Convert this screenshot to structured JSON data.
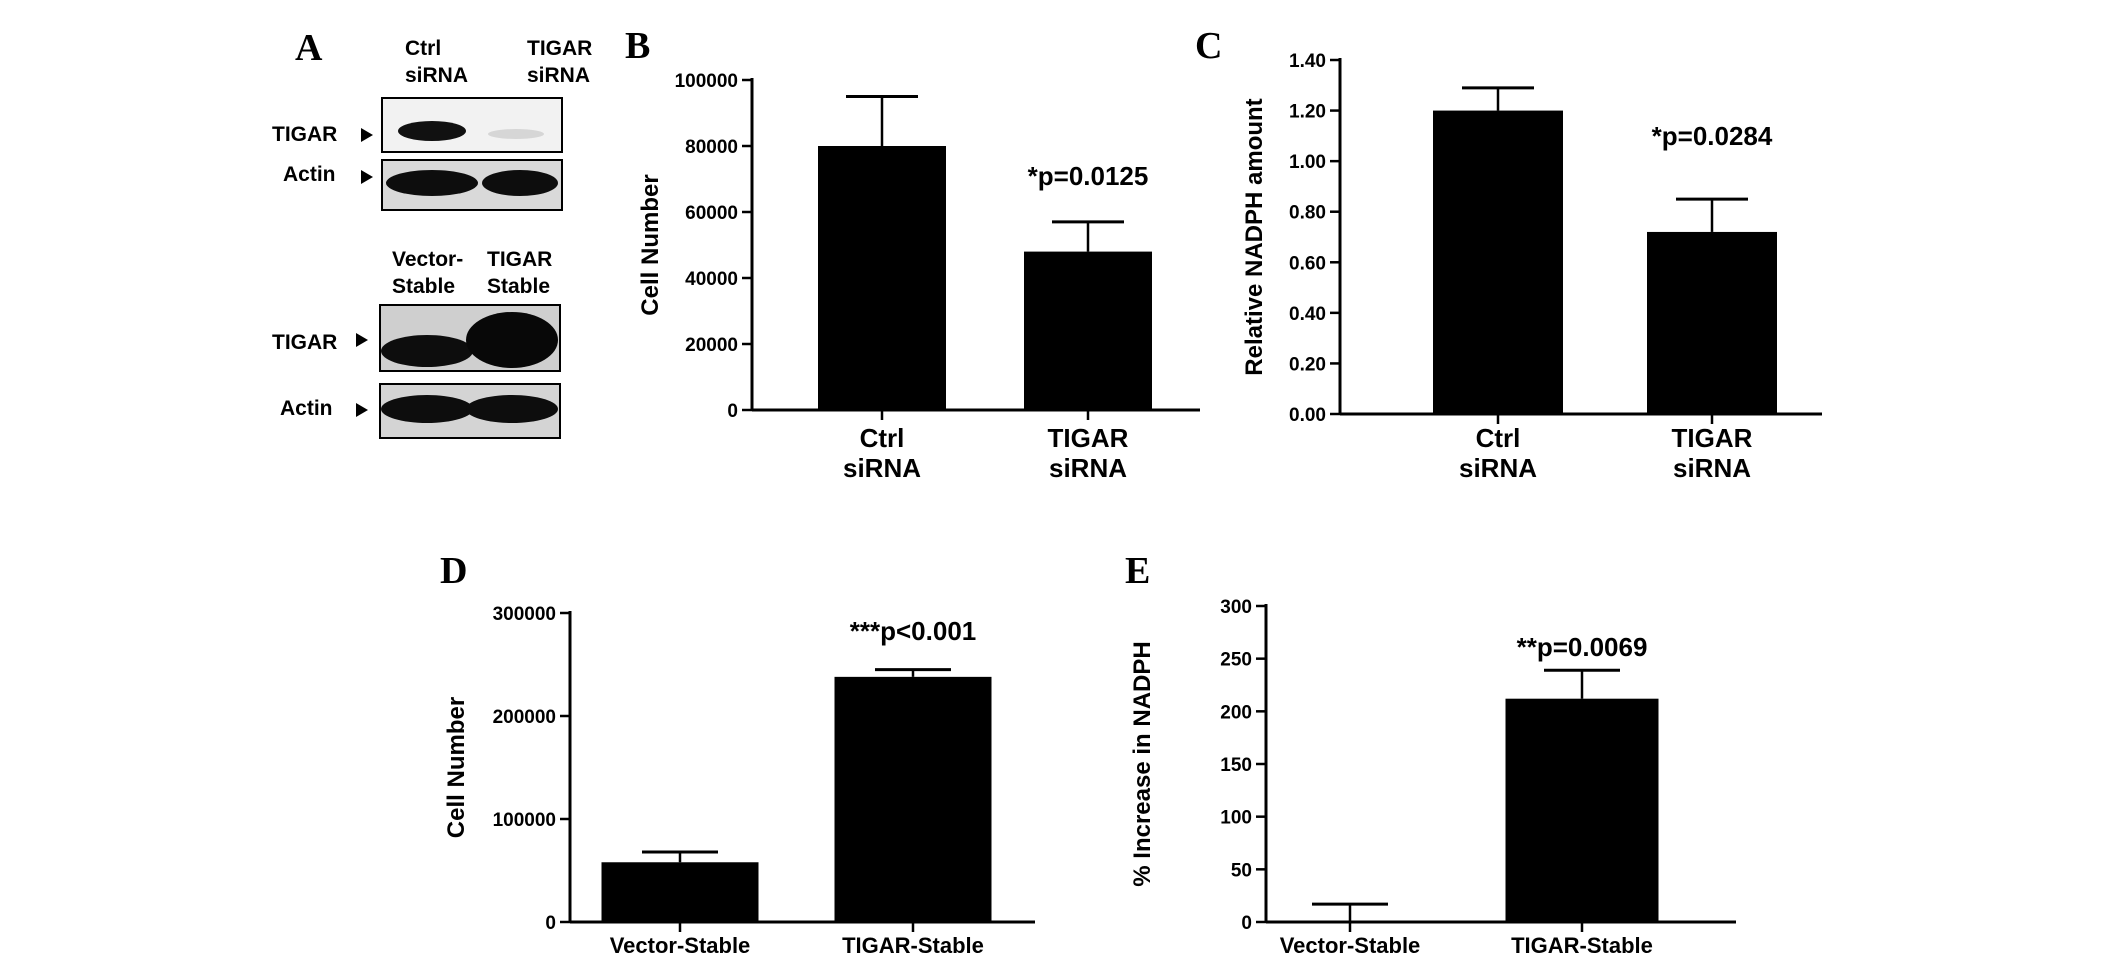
{
  "panel_a": {
    "letter": "A",
    "blot1": {
      "lanes": [
        [
          "Ctrl",
          "siRNA"
        ],
        [
          "TIGAR",
          "siRNA"
        ]
      ],
      "rows": [
        "TIGAR",
        "Actin"
      ]
    },
    "blot2": {
      "lanes": [
        [
          "Vector-",
          "Stable"
        ],
        [
          "TIGAR",
          "Stable"
        ]
      ],
      "rows": [
        "TIGAR",
        "Actin"
      ]
    }
  },
  "chart_data": [
    {
      "panel": "B",
      "type": "bar",
      "categories": [
        [
          "Ctrl",
          "siRNA"
        ],
        [
          "TIGAR",
          "siRNA"
        ]
      ],
      "values": [
        80000,
        48000
      ],
      "errors": [
        15000,
        9000
      ],
      "ylabel": "Cell Number",
      "ylim": [
        0,
        100000
      ],
      "yticks": [
        0,
        20000,
        40000,
        60000,
        80000,
        100000
      ],
      "tick_decimals": 0,
      "annotations": [
        {
          "category_index": 1,
          "text": "*p=0.0125"
        }
      ]
    },
    {
      "panel": "C",
      "type": "bar",
      "categories": [
        [
          "Ctrl",
          "siRNA"
        ],
        [
          "TIGAR",
          "siRNA"
        ]
      ],
      "values": [
        1.2,
        0.72
      ],
      "errors": [
        0.09,
        0.13
      ],
      "ylabel": "Relative NADPH amount",
      "ylim": [
        0,
        1.4
      ],
      "yticks": [
        0,
        0.2,
        0.4,
        0.6,
        0.8,
        1.0,
        1.2,
        1.4
      ],
      "tick_decimals": 2,
      "annotations": [
        {
          "category_index": 1,
          "text": "*p=0.0284"
        }
      ]
    },
    {
      "panel": "D",
      "type": "bar",
      "categories": [
        [
          "Vector-Stable"
        ],
        [
          "TIGAR-Stable"
        ]
      ],
      "values": [
        58000,
        238000
      ],
      "errors": [
        10000,
        7000
      ],
      "ylabel": "Cell Number",
      "ylim": [
        0,
        300000
      ],
      "yticks": [
        0,
        100000,
        200000,
        300000
      ],
      "tick_decimals": 0,
      "annotations": [
        {
          "category_index": 1,
          "text": "***p<0.001"
        }
      ]
    },
    {
      "panel": "E",
      "type": "bar",
      "categories": [
        [
          "Vector-Stable"
        ],
        [
          "TIGAR-Stable"
        ]
      ],
      "values": [
        0,
        212
      ],
      "errors": [
        17,
        27
      ],
      "ylabel": "% Increase in NADPH",
      "ylim": [
        0,
        300
      ],
      "yticks": [
        0,
        50,
        100,
        150,
        200,
        250,
        300
      ],
      "tick_decimals": 0,
      "annotations": [
        {
          "category_index": 1,
          "text": "**p=0.0069"
        }
      ]
    }
  ]
}
